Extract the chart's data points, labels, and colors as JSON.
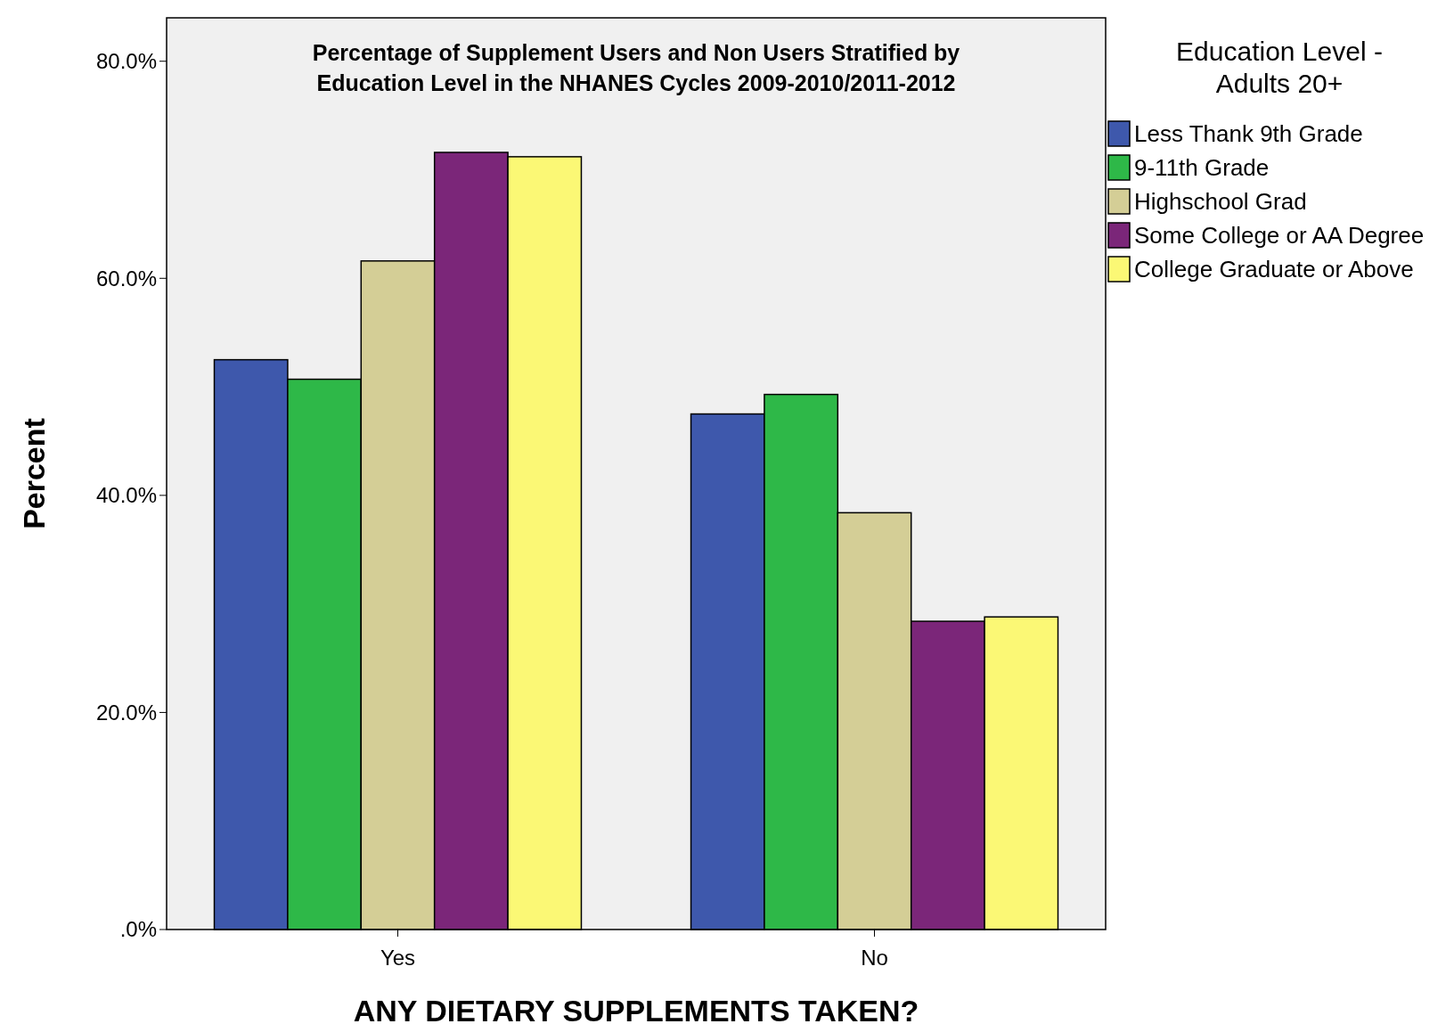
{
  "chart_data": {
    "type": "bar",
    "title": "Percentage of Supplement Users and Non Users Stratified by Education Level in the NHANES Cycles 2009-2010/2011-2012",
    "xlabel": "ANY DIETARY SUPPLEMENTS TAKEN?",
    "ylabel": "Percent",
    "legend_title": "Education Level - Adults 20+",
    "categories": [
      "Yes",
      "No"
    ],
    "series": [
      {
        "name": "Less Thank 9th Grade",
        "color": "#3e58ac",
        "values": [
          52.5,
          47.5
        ]
      },
      {
        "name": "9-11th Grade",
        "color": "#2eb848",
        "values": [
          50.7,
          49.3
        ]
      },
      {
        "name": "Highschool Grad",
        "color": "#d4ce96",
        "values": [
          61.6,
          38.4
        ]
      },
      {
        "name": "Some College or AA Degree",
        "color": "#7b2679",
        "values": [
          71.6,
          28.4
        ]
      },
      {
        "name": "College Graduate or Above",
        "color": "#fbf875",
        "values": [
          71.2,
          28.8
        ]
      }
    ],
    "ylim": [
      0,
      84
    ],
    "yticks": [
      {
        "value": 0,
        "label": ".0%"
      },
      {
        "value": 20,
        "label": "20.0%"
      },
      {
        "value": 40,
        "label": "40.0%"
      },
      {
        "value": 60,
        "label": "60.0%"
      },
      {
        "value": 80,
        "label": "80.0%"
      }
    ],
    "grid": false,
    "legend": "right"
  }
}
